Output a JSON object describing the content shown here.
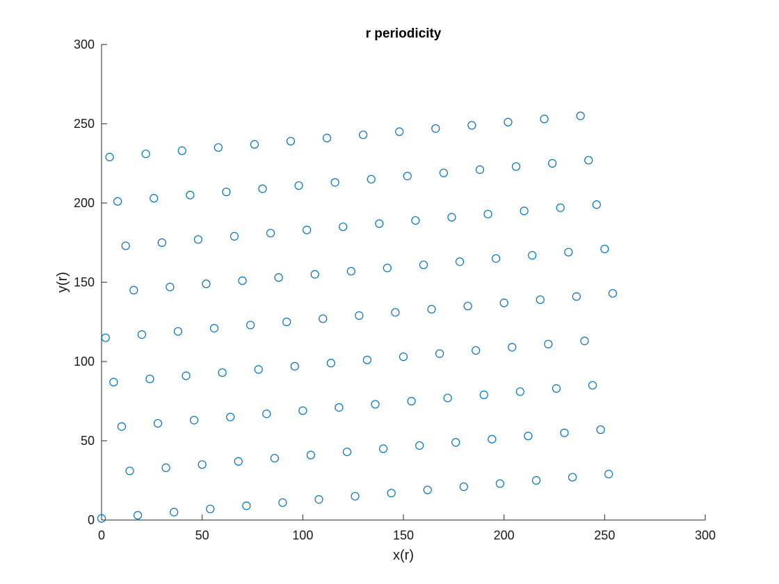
{
  "chart_data": {
    "type": "scatter",
    "title": "r periodicity",
    "xlabel": "x(r)",
    "ylabel": "y(r)",
    "xlim": [
      0,
      300
    ],
    "ylim": [
      0,
      300
    ],
    "xticks": [
      0,
      50,
      100,
      150,
      200,
      250,
      300
    ],
    "yticks": [
      0,
      50,
      100,
      150,
      200,
      250,
      300
    ],
    "xtick_labels": [
      "0",
      "50",
      "100",
      "150",
      "200",
      "250",
      "300"
    ],
    "ytick_labels": [
      "0",
      "50",
      "100",
      "150",
      "200",
      "250",
      "300"
    ],
    "grid": false,
    "marker": "circle-open",
    "marker_color": "#0072BD",
    "points": [
      [
        0,
        1
      ],
      [
        18,
        3
      ],
      [
        36,
        5
      ],
      [
        54,
        7
      ],
      [
        72,
        9
      ],
      [
        90,
        11
      ],
      [
        108,
        13
      ],
      [
        126,
        15
      ],
      [
        144,
        17
      ],
      [
        162,
        19
      ],
      [
        180,
        21
      ],
      [
        198,
        23
      ],
      [
        216,
        25
      ],
      [
        234,
        27
      ],
      [
        252,
        29
      ],
      [
        14,
        31
      ],
      [
        32,
        33
      ],
      [
        50,
        35
      ],
      [
        68,
        37
      ],
      [
        86,
        39
      ],
      [
        104,
        41
      ],
      [
        122,
        43
      ],
      [
        140,
        45
      ],
      [
        158,
        47
      ],
      [
        176,
        49
      ],
      [
        194,
        51
      ],
      [
        212,
        53
      ],
      [
        230,
        55
      ],
      [
        248,
        57
      ],
      [
        10,
        59
      ],
      [
        28,
        61
      ],
      [
        46,
        63
      ],
      [
        64,
        65
      ],
      [
        82,
        67
      ],
      [
        100,
        69
      ],
      [
        118,
        71
      ],
      [
        136,
        73
      ],
      [
        154,
        75
      ],
      [
        172,
        77
      ],
      [
        190,
        79
      ],
      [
        208,
        81
      ],
      [
        226,
        83
      ],
      [
        244,
        85
      ],
      [
        6,
        87
      ],
      [
        24,
        89
      ],
      [
        42,
        91
      ],
      [
        60,
        93
      ],
      [
        78,
        95
      ],
      [
        96,
        97
      ],
      [
        114,
        99
      ],
      [
        132,
        101
      ],
      [
        150,
        103
      ],
      [
        168,
        105
      ],
      [
        186,
        107
      ],
      [
        204,
        109
      ],
      [
        222,
        111
      ],
      [
        240,
        113
      ],
      [
        2,
        115
      ],
      [
        20,
        117
      ],
      [
        38,
        119
      ],
      [
        56,
        121
      ],
      [
        74,
        123
      ],
      [
        92,
        125
      ],
      [
        110,
        127
      ],
      [
        128,
        129
      ],
      [
        146,
        131
      ],
      [
        164,
        133
      ],
      [
        182,
        135
      ],
      [
        200,
        137
      ],
      [
        218,
        139
      ],
      [
        236,
        141
      ],
      [
        254,
        143
      ],
      [
        16,
        145
      ],
      [
        34,
        147
      ],
      [
        52,
        149
      ],
      [
        70,
        151
      ],
      [
        88,
        153
      ],
      [
        106,
        155
      ],
      [
        124,
        157
      ],
      [
        142,
        159
      ],
      [
        160,
        161
      ],
      [
        178,
        163
      ],
      [
        196,
        165
      ],
      [
        214,
        167
      ],
      [
        232,
        169
      ],
      [
        250,
        171
      ],
      [
        12,
        173
      ],
      [
        30,
        175
      ],
      [
        48,
        177
      ],
      [
        66,
        179
      ],
      [
        84,
        181
      ],
      [
        102,
        183
      ],
      [
        120,
        185
      ],
      [
        138,
        187
      ],
      [
        156,
        189
      ],
      [
        174,
        191
      ],
      [
        192,
        193
      ],
      [
        210,
        195
      ],
      [
        228,
        197
      ],
      [
        246,
        199
      ],
      [
        8,
        201
      ],
      [
        26,
        203
      ],
      [
        44,
        205
      ],
      [
        62,
        207
      ],
      [
        80,
        209
      ],
      [
        98,
        211
      ],
      [
        116,
        213
      ],
      [
        134,
        215
      ],
      [
        152,
        217
      ],
      [
        170,
        219
      ],
      [
        188,
        221
      ],
      [
        206,
        223
      ],
      [
        224,
        225
      ],
      [
        242,
        227
      ],
      [
        4,
        229
      ],
      [
        22,
        231
      ],
      [
        40,
        233
      ],
      [
        58,
        235
      ],
      [
        76,
        237
      ],
      [
        94,
        239
      ],
      [
        112,
        241
      ],
      [
        130,
        243
      ],
      [
        148,
        245
      ],
      [
        166,
        247
      ],
      [
        184,
        249
      ],
      [
        202,
        251
      ],
      [
        220,
        253
      ],
      [
        238,
        255
      ]
    ]
  }
}
